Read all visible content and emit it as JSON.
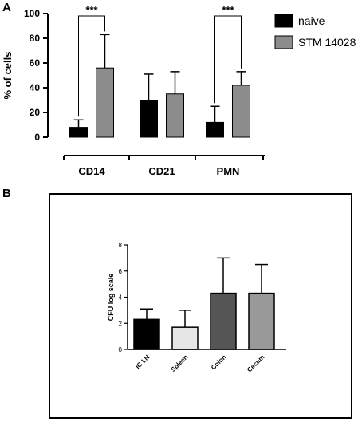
{
  "panels": {
    "a_label": "A",
    "b_label": "B"
  },
  "chart_data": [
    {
      "type": "bar",
      "panel": "A",
      "title": "",
      "xlabel": "",
      "ylabel": "% of cells",
      "ylim": [
        0,
        100
      ],
      "yticks": [
        0,
        20,
        40,
        60,
        80,
        100
      ],
      "categories": [
        "CD14",
        "CD21",
        "PMN"
      ],
      "legend_placement": "top-right",
      "grid": false,
      "series": [
        {
          "name": "naive",
          "color": "#000000",
          "values": [
            8,
            30,
            12
          ],
          "error": [
            6,
            21,
            13
          ]
        },
        {
          "name": "STM 14028",
          "color": "#8c8c8c",
          "values": [
            56,
            35,
            42
          ],
          "error": [
            27,
            18,
            11
          ]
        }
      ],
      "annotations": [
        {
          "category": "CD14",
          "text": "***"
        },
        {
          "category": "PMN",
          "text": "***"
        }
      ]
    },
    {
      "type": "bar",
      "panel": "B",
      "title": "",
      "xlabel": "",
      "ylabel": "CFU log scale",
      "ylim": [
        0,
        8
      ],
      "yticks": [
        0,
        2,
        4,
        6,
        8
      ],
      "grid": false,
      "categories": [
        "IC LN",
        "Spleen",
        "Colon",
        "Cecum"
      ],
      "values": [
        2.3,
        1.7,
        4.3,
        4.3
      ],
      "error": [
        0.8,
        1.3,
        2.7,
        2.2
      ],
      "colors": [
        "#000000",
        "#e6e6e6",
        "#555555",
        "#999999"
      ]
    }
  ]
}
